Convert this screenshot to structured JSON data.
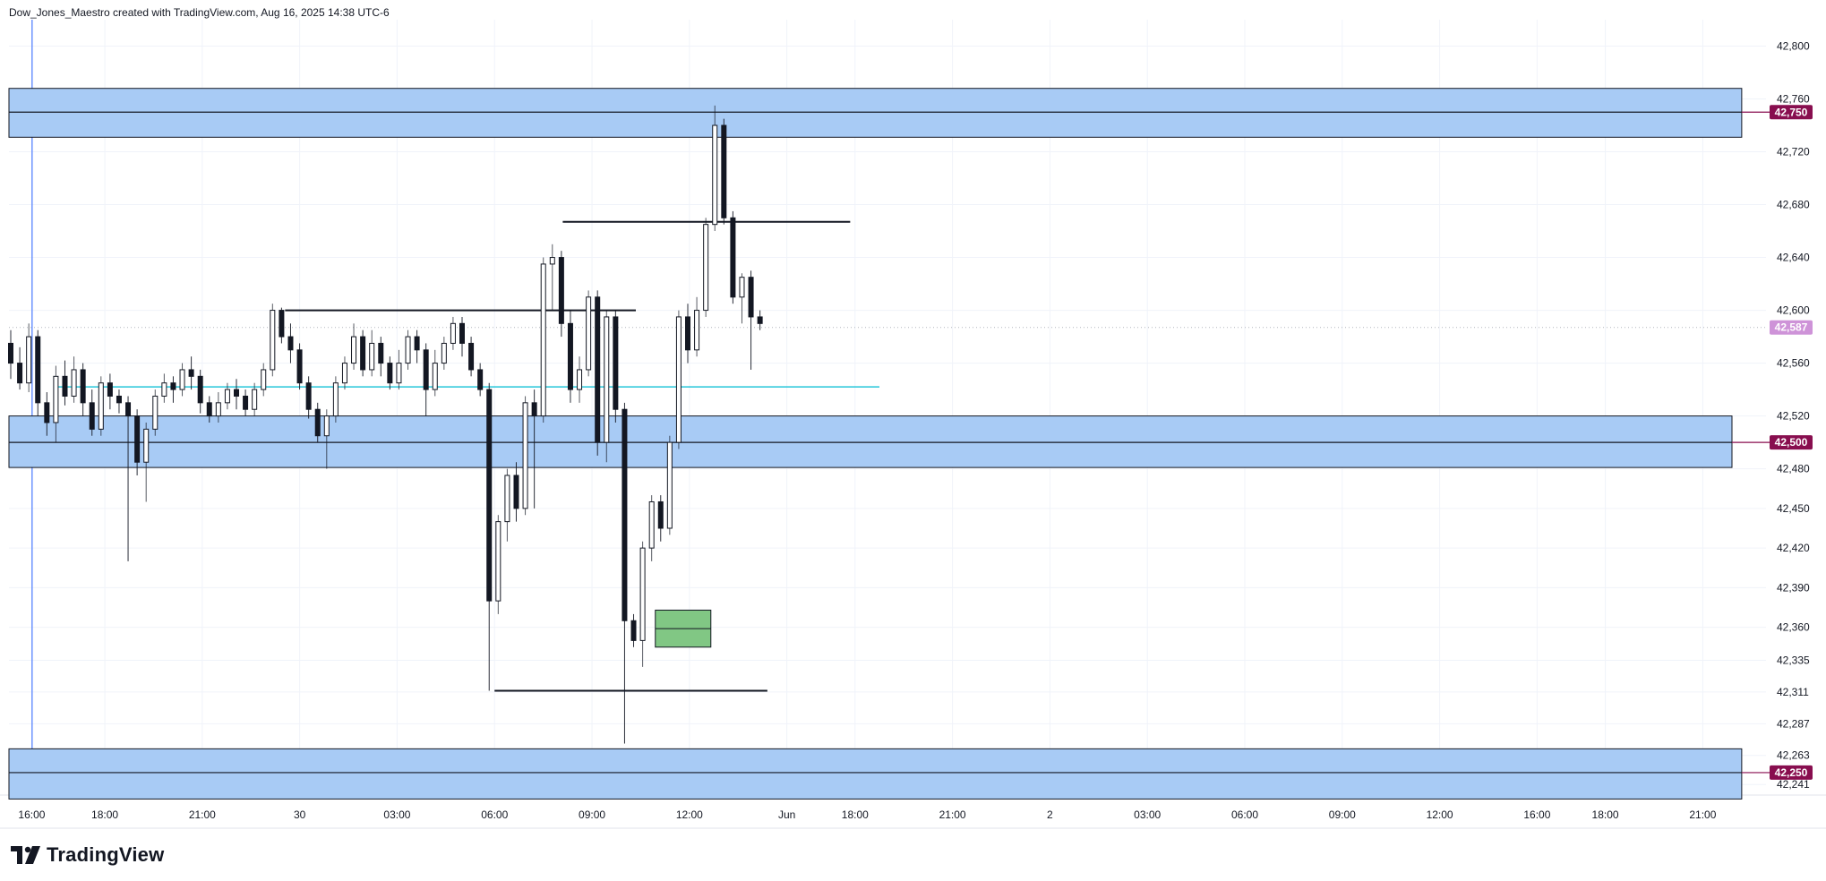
{
  "header": {
    "attribution": "Dow_Jones_Maestro created with TradingView.com, Aug 16, 2025 14:38 UTC-6"
  },
  "brand": {
    "name": "TradingView"
  },
  "colors": {
    "zone_fill": "#a8cbf5",
    "zone_border": "#131722",
    "tag_bg": "#880e4f",
    "current_price_bg": "#ce93d8",
    "demand_fill": "#81c784",
    "cyan_line": "#26c6da",
    "cursor_line": "#2962ff",
    "grid": "#f0f3fa"
  },
  "chart_data": {
    "type": "candlestick",
    "ylim": [
      42233,
      42820
    ],
    "y_ticks": [
      {
        "value": 42800,
        "label": "42,800"
      },
      {
        "value": 42760,
        "label": "42,760"
      },
      {
        "value": 42720,
        "label": "42,720"
      },
      {
        "value": 42680,
        "label": "42,680"
      },
      {
        "value": 42640,
        "label": "42,640"
      },
      {
        "value": 42600,
        "label": "42,600"
      },
      {
        "value": 42560,
        "label": "42,560"
      },
      {
        "value": 42520,
        "label": "42,520"
      },
      {
        "value": 42480,
        "label": "42,480"
      },
      {
        "value": 42450,
        "label": "42,450"
      },
      {
        "value": 42420,
        "label": "42,420"
      },
      {
        "value": 42390,
        "label": "42,390"
      },
      {
        "value": 42360,
        "label": "42,360"
      },
      {
        "value": 42335,
        "label": "42,335"
      },
      {
        "value": 42311,
        "label": "42,311"
      },
      {
        "value": 42287,
        "label": "42,287"
      },
      {
        "value": 42263,
        "label": "42,263"
      },
      {
        "value": 42241,
        "label": "42,241"
      }
    ],
    "x_range": [
      0,
      180
    ],
    "x_ticks": [
      {
        "t": 0.5,
        "label": "16:00"
      },
      {
        "t": 8,
        "label": "18:00"
      },
      {
        "t": 18,
        "label": "21:00"
      },
      {
        "t": 28,
        "label": "30"
      },
      {
        "t": 38,
        "label": "03:00"
      },
      {
        "t": 48,
        "label": "06:00"
      },
      {
        "t": 58,
        "label": "09:00"
      },
      {
        "t": 68,
        "label": "12:00"
      },
      {
        "t": 78,
        "label": "Jun"
      },
      {
        "t": 85,
        "label": "18:00"
      },
      {
        "t": 95,
        "label": "21:00"
      },
      {
        "t": 105,
        "label": "2"
      },
      {
        "t": 115,
        "label": "03:00"
      },
      {
        "t": 125,
        "label": "06:00"
      },
      {
        "t": 135,
        "label": "09:00"
      },
      {
        "t": 145,
        "label": "12:00"
      },
      {
        "t": 155,
        "label": "16:00"
      },
      {
        "t": 162,
        "label": "18:00"
      },
      {
        "t": 172,
        "label": "21:00"
      }
    ],
    "price_tags": [
      {
        "value": 42750,
        "label": "42,750",
        "kind": "level"
      },
      {
        "value": 42500,
        "label": "42,500",
        "kind": "level"
      },
      {
        "value": 42250,
        "label": "42,250",
        "kind": "level"
      },
      {
        "value": 42587,
        "label": "42,587",
        "kind": "current"
      }
    ],
    "zones": [
      {
        "top": 42768,
        "bottom": 42731,
        "mid": 42750,
        "t_end": 176
      },
      {
        "top": 42520,
        "bottom": 42481,
        "mid": 42500,
        "t_end": 175
      },
      {
        "top": 42268,
        "bottom": 42230,
        "mid": 42250,
        "t_end": 176
      }
    ],
    "demand_box": {
      "t_start": 64.5,
      "t_end": 70.2,
      "top": 42373,
      "bottom": 42345,
      "mid": 42359
    },
    "horizontal_lines": [
      {
        "value": 42600,
        "t_start": 26.5,
        "t_end": 62.5,
        "kind": "black"
      },
      {
        "value": 42667,
        "t_start": 55,
        "t_end": 84.5,
        "kind": "black"
      },
      {
        "value": 42312,
        "t_start": 48,
        "t_end": 76,
        "kind": "black"
      },
      {
        "value": 42542,
        "t_start": 3,
        "t_end": 87.5,
        "kind": "cyan"
      }
    ],
    "cursor_t": 1,
    "current_price": 42587,
    "candles": [
      [
        42575,
        42560,
        42585,
        42548
      ],
      [
        42560,
        42545,
        42572,
        42540
      ],
      [
        42545,
        42580,
        42590,
        42538
      ],
      [
        42580,
        42530,
        42585,
        42520
      ],
      [
        42530,
        42515,
        42538,
        42505
      ],
      [
        42515,
        42550,
        42558,
        42500
      ],
      [
        42550,
        42535,
        42562,
        42528
      ],
      [
        42535,
        42555,
        42565,
        42530
      ],
      [
        42555,
        42530,
        42560,
        42520
      ],
      [
        42530,
        42510,
        42540,
        42505
      ],
      [
        42510,
        42545,
        42550,
        42505
      ],
      [
        42545,
        42535,
        42552,
        42525
      ],
      [
        42535,
        42530,
        42540,
        42522
      ],
      [
        42530,
        42520,
        42535,
        42410
      ],
      [
        42520,
        42485,
        42525,
        42475
      ],
      [
        42485,
        42510,
        42515,
        42455
      ],
      [
        42510,
        42535,
        42540,
        42505
      ],
      [
        42535,
        42545,
        42552,
        42530
      ],
      [
        42545,
        42540,
        42550,
        42530
      ],
      [
        42540,
        42555,
        42560,
        42535
      ],
      [
        42555,
        42550,
        42565,
        42540
      ],
      [
        42550,
        42530,
        42555,
        42522
      ],
      [
        42530,
        42520,
        42535,
        42515
      ],
      [
        42520,
        42530,
        42538,
        42515
      ],
      [
        42530,
        42540,
        42545,
        42525
      ],
      [
        42540,
        42535,
        42548,
        42525
      ],
      [
        42535,
        42525,
        42540,
        42520
      ],
      [
        42525,
        42540,
        42545,
        42520
      ],
      [
        42540,
        42555,
        42560,
        42535
      ],
      [
        42555,
        42600,
        42605,
        42550
      ],
      [
        42600,
        42580,
        42602,
        42575
      ],
      [
        42580,
        42570,
        42590,
        42560
      ],
      [
        42570,
        42545,
        42575,
        42540
      ],
      [
        42545,
        42525,
        42550,
        42518
      ],
      [
        42525,
        42505,
        42530,
        42500
      ],
      [
        42505,
        42520,
        42525,
        42480
      ],
      [
        42520,
        42545,
        42550,
        42515
      ],
      [
        42545,
        42560,
        42565,
        42540
      ],
      [
        42560,
        42580,
        42590,
        42555
      ],
      [
        42580,
        42555,
        42585,
        42550
      ],
      [
        42555,
        42575,
        42585,
        42550
      ],
      [
        42575,
        42560,
        42580,
        42550
      ],
      [
        42560,
        42545,
        42565,
        42540
      ],
      [
        42545,
        42560,
        42570,
        42540
      ],
      [
        42560,
        42580,
        42585,
        42555
      ],
      [
        42580,
        42570,
        42585,
        42560
      ],
      [
        42570,
        42540,
        42575,
        42520
      ],
      [
        42540,
        42560,
        42570,
        42535
      ],
      [
        42560,
        42575,
        42580,
        42555
      ],
      [
        42575,
        42590,
        42595,
        42570
      ],
      [
        42590,
        42575,
        42595,
        42565
      ],
      [
        42575,
        42555,
        42580,
        42550
      ],
      [
        42555,
        42540,
        42560,
        42535
      ],
      [
        42540,
        42380,
        42545,
        42312
      ],
      [
        42380,
        42440,
        42445,
        42370
      ],
      [
        42440,
        42475,
        42480,
        42425
      ],
      [
        42475,
        42450,
        42485,
        42440
      ],
      [
        42450,
        42530,
        42535,
        42445
      ],
      [
        42530,
        42520,
        42540,
        42450
      ],
      [
        42520,
        42635,
        42640,
        42515
      ],
      [
        42635,
        42640,
        42650,
        42600
      ],
      [
        42640,
        42590,
        42645,
        42580
      ],
      [
        42590,
        42540,
        42600,
        42530
      ],
      [
        42540,
        42555,
        42565,
        42530
      ],
      [
        42555,
        42610,
        42615,
        42550
      ],
      [
        42610,
        42500,
        42615,
        42490
      ],
      [
        42500,
        42595,
        42600,
        42485
      ],
      [
        42595,
        42525,
        42600,
        42515
      ],
      [
        42525,
        42365,
        42530,
        42272
      ],
      [
        42365,
        42350,
        42370,
        42345
      ],
      [
        42350,
        42420,
        42425,
        42330
      ],
      [
        42420,
        42455,
        42460,
        42410
      ],
      [
        42455,
        42435,
        42460,
        42425
      ],
      [
        42435,
        42500,
        42505,
        42430
      ],
      [
        42500,
        42595,
        42600,
        42495
      ],
      [
        42595,
        42570,
        42605,
        42560
      ],
      [
        42570,
        42600,
        42610,
        42565
      ],
      [
        42600,
        42665,
        42670,
        42595
      ],
      [
        42665,
        42740,
        42755,
        42660
      ],
      [
        42740,
        42670,
        42745,
        42665
      ],
      [
        42670,
        42610,
        42675,
        42605
      ],
      [
        42610,
        42625,
        42628,
        42590
      ],
      [
        42625,
        42595,
        42630,
        42555
      ],
      [
        42595,
        42590,
        42600,
        42585
      ]
    ]
  }
}
